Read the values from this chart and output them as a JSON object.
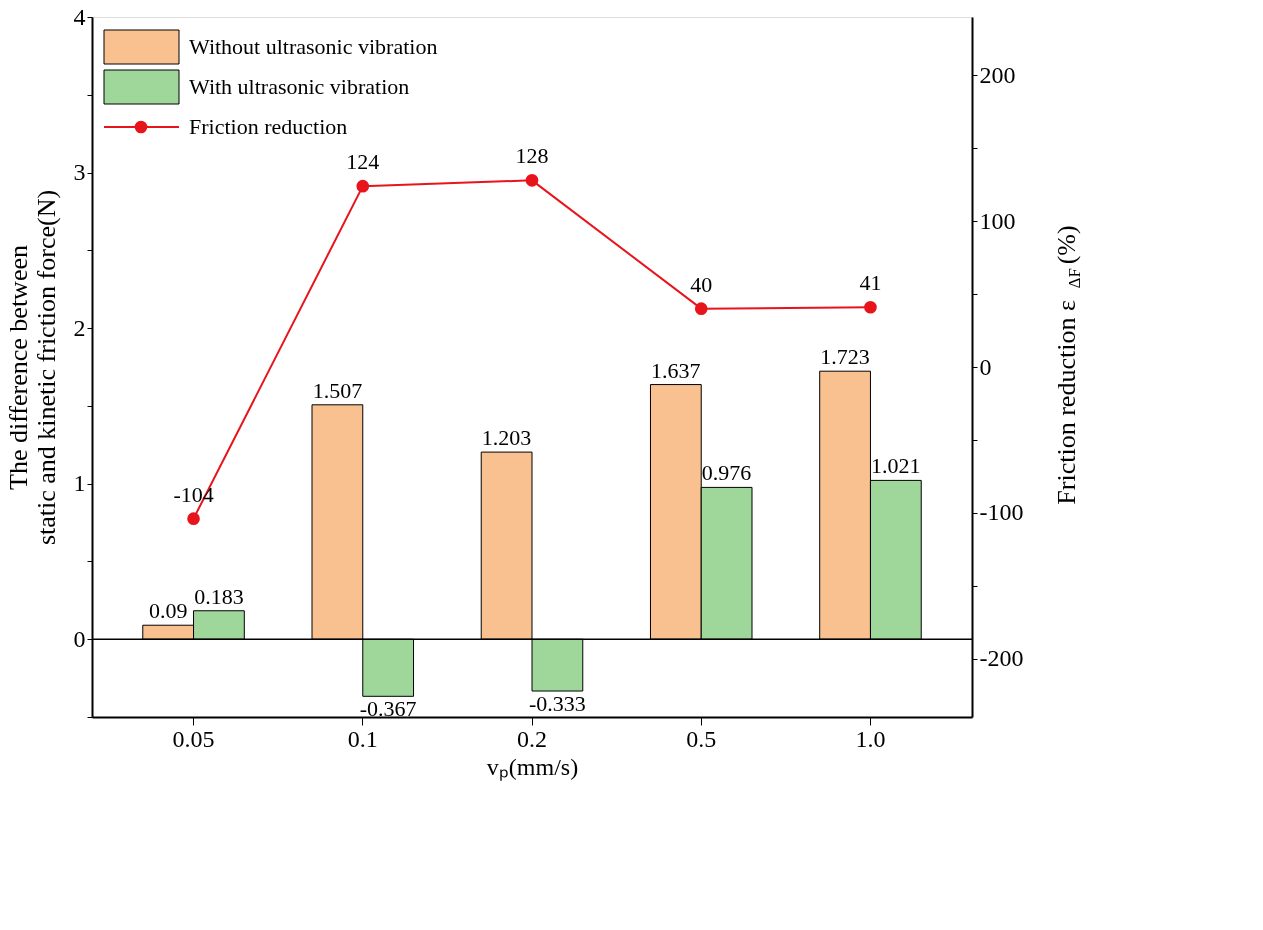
{
  "chart_data": {
    "type": "bar",
    "xlabel": "vₚ(mm/s)",
    "ylabel": "The difference between\nstatic and kinetic friction force(N)",
    "y2label": "Friction reduction ε$_{ΔF}$(%)",
    "categories": [
      "0.05",
      "0.1",
      "0.2",
      "0.5",
      "1.0"
    ],
    "series": [
      {
        "name": "Without ultrasonic vibration",
        "color": "#f9c18f",
        "values": [
          0.09,
          1.507,
          1.203,
          1.637,
          1.723
        ]
      },
      {
        "name": "With ultrasonic vibration",
        "color": "#9fd79a",
        "values": [
          0.183,
          -0.367,
          -0.333,
          0.976,
          1.021
        ]
      },
      {
        "name": "Friction reduction",
        "type": "line",
        "axis": "y2",
        "color": "#e8141c",
        "marker": "circle",
        "values": [
          -104,
          124,
          128,
          40,
          41
        ]
      }
    ],
    "ylim": [
      -0.5,
      4
    ],
    "yticks": [
      {
        "value": -0.5,
        "label": null
      },
      0,
      {
        "value": 0.5,
        "label": null
      },
      1,
      {
        "value": 1.5,
        "label": null
      },
      2,
      {
        "value": 2.5,
        "label": null
      },
      3,
      {
        "value": 3.5,
        "label": null
      },
      4
    ],
    "y2lim": [
      -240,
      240
    ],
    "y2ticks": [
      -200,
      {
        "value": -150,
        "label": null
      },
      -100,
      {
        "value": -50,
        "label": null
      },
      0,
      {
        "value": 50,
        "label": null
      },
      100,
      {
        "value": 150,
        "label": null
      },
      200
    ],
    "ref_lines": [
      {
        "axis": "y",
        "value": 0,
        "color": "#000000"
      }
    ],
    "data_labels": true,
    "grid": false,
    "legend": "top left"
  }
}
